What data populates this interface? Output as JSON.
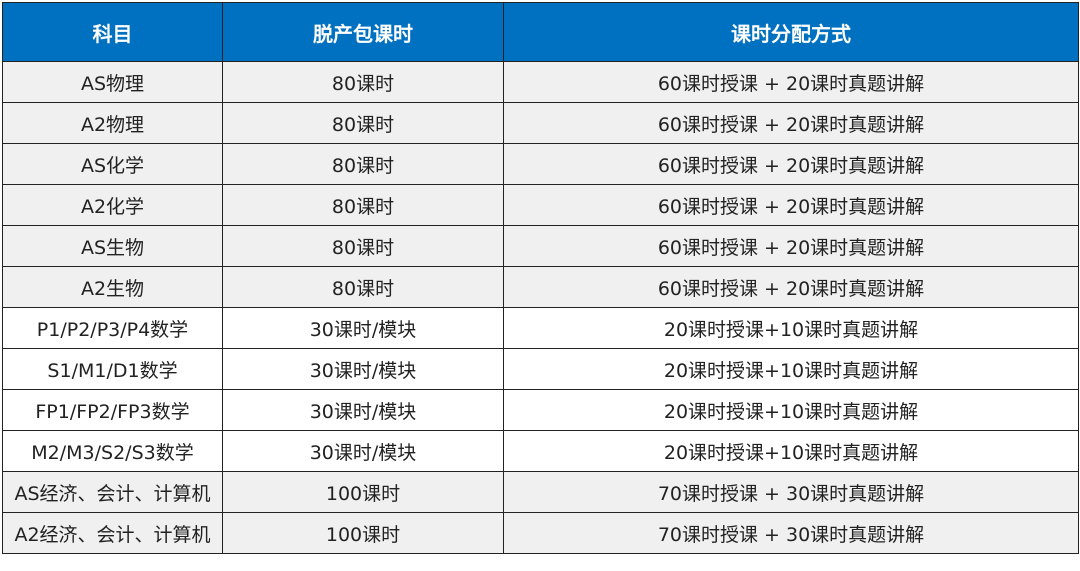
{
  "colors": {
    "header_bg": "#0070c0",
    "row_gray": "#f0f0f0",
    "row_white": "#ffffff"
  },
  "headers": [
    "科目",
    "脱产包课时",
    "课时分配方式"
  ],
  "rows": [
    {
      "subject": "AS物理",
      "hours": "80课时",
      "allocation": "60课时授课 + 20课时真题讲解",
      "shade": "gray"
    },
    {
      "subject": "A2物理",
      "hours": "80课时",
      "allocation": "60课时授课 + 20课时真题讲解",
      "shade": "gray"
    },
    {
      "subject": "AS化学",
      "hours": "80课时",
      "allocation": "60课时授课 + 20课时真题讲解",
      "shade": "gray"
    },
    {
      "subject": "A2化学",
      "hours": "80课时",
      "allocation": "60课时授课 + 20课时真题讲解",
      "shade": "gray"
    },
    {
      "subject": "AS生物",
      "hours": "80课时",
      "allocation": "60课时授课 + 20课时真题讲解",
      "shade": "gray"
    },
    {
      "subject": "A2生物",
      "hours": "80课时",
      "allocation": "60课时授课 + 20课时真题讲解",
      "shade": "gray"
    },
    {
      "subject": "P1/P2/P3/P4数学",
      "hours": "30课时/模块",
      "allocation": "20课时授课+10课时真题讲解",
      "shade": "white"
    },
    {
      "subject": "S1/M1/D1数学",
      "hours": "30课时/模块",
      "allocation": "20课时授课+10课时真题讲解",
      "shade": "white"
    },
    {
      "subject": "FP1/FP2/FP3数学",
      "hours": "30课时/模块",
      "allocation": "20课时授课+10课时真题讲解",
      "shade": "white"
    },
    {
      "subject": "M2/M3/S2/S3数学",
      "hours": "30课时/模块",
      "allocation": "20课时授课+10课时真题讲解",
      "shade": "white"
    },
    {
      "subject": "AS经济、会计、计算机",
      "hours": "100课时",
      "allocation": "70课时授课 + 30课时真题讲解",
      "shade": "gray"
    },
    {
      "subject": "A2经济、会计、计算机",
      "hours": "100课时",
      "allocation": "70课时授课 + 30课时真题讲解",
      "shade": "gray"
    }
  ]
}
